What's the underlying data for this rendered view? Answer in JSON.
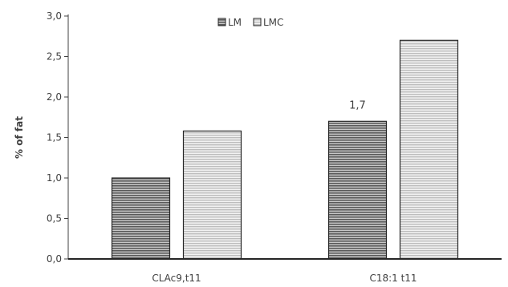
{
  "chart_data": {
    "type": "bar",
    "title": "",
    "xlabel": "",
    "ylabel": "% of fat",
    "categories": [
      "CLAc9,t11",
      "C18:1 t11"
    ],
    "series": [
      {
        "name": "LM",
        "values": [
          1.0,
          1.7
        ],
        "color": "#8c8c8c",
        "pattern": "horizontal-stripes-dark"
      },
      {
        "name": "LMC",
        "values": [
          1.58,
          2.7
        ],
        "color": "#d9d9d9",
        "pattern": "horizontal-stripes-light"
      }
    ],
    "ylim": [
      0,
      3.0
    ],
    "yticks": [
      "0,0",
      "0,5",
      "1,0",
      "1,5",
      "2,0",
      "2,5",
      "3,0"
    ],
    "grid": false,
    "legend_position": "top-center",
    "data_labels": [
      {
        "series": "LM",
        "category": "C18:1 t11",
        "text": "1,7"
      }
    ]
  }
}
